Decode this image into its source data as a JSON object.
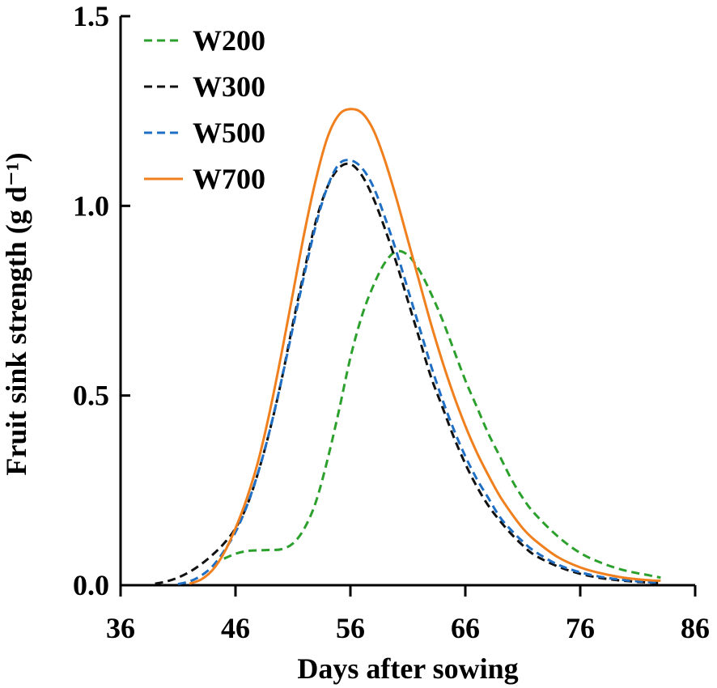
{
  "chart_data": {
    "type": "line",
    "title": "",
    "xlabel": "Days after sowing",
    "ylabel": "Fruit sink strength (g d⁻¹)",
    "xlim": [
      36,
      86
    ],
    "ylim": [
      0,
      1.5
    ],
    "xticks": [
      36,
      46,
      56,
      66,
      76,
      86
    ],
    "xtick_labels": [
      "36",
      "46",
      "56",
      "66",
      "76",
      "86"
    ],
    "yticks": [
      0,
      0.5,
      1.0,
      1.5
    ],
    "ytick_labels": [
      "0.0",
      "0.5",
      "1.0",
      "1.5"
    ],
    "grid": false,
    "legend_position": "top-left",
    "series": [
      {
        "name": "W200",
        "color": "#2ca02c",
        "dash": "dashed",
        "x": [
          45,
          46,
          47,
          48,
          49,
          50,
          51,
          52,
          53,
          54,
          55,
          56,
          57,
          58,
          59,
          60,
          61,
          62,
          63,
          64,
          65,
          66,
          67,
          68,
          69,
          70,
          71,
          72,
          74,
          76,
          78,
          80,
          82,
          83
        ],
        "y": [
          0.07,
          0.083,
          0.09,
          0.092,
          0.093,
          0.095,
          0.11,
          0.15,
          0.22,
          0.33,
          0.46,
          0.6,
          0.71,
          0.79,
          0.85,
          0.88,
          0.87,
          0.83,
          0.77,
          0.7,
          0.62,
          0.54,
          0.47,
          0.4,
          0.34,
          0.28,
          0.23,
          0.19,
          0.13,
          0.085,
          0.057,
          0.038,
          0.026,
          0.02
        ]
      },
      {
        "name": "W300",
        "color": "#111111",
        "dash": "dashed",
        "x": [
          39,
          40,
          41,
          42,
          43,
          44,
          45,
          46,
          47,
          48,
          49,
          50,
          51,
          52,
          53,
          54,
          55,
          56,
          57,
          58,
          59,
          60,
          61,
          62,
          63,
          64,
          65,
          66,
          67,
          68,
          69,
          70,
          71,
          72,
          74,
          76,
          78,
          80,
          82,
          83
        ],
        "y": [
          0.004,
          0.01,
          0.02,
          0.035,
          0.055,
          0.08,
          0.11,
          0.15,
          0.21,
          0.3,
          0.41,
          0.54,
          0.69,
          0.83,
          0.96,
          1.05,
          1.1,
          1.11,
          1.08,
          1.02,
          0.94,
          0.85,
          0.75,
          0.65,
          0.55,
          0.47,
          0.39,
          0.32,
          0.26,
          0.21,
          0.17,
          0.135,
          0.105,
          0.08,
          0.05,
          0.03,
          0.018,
          0.011,
          0.007,
          0.006
        ]
      },
      {
        "name": "W500",
        "color": "#1f6fc5",
        "dash": "dashed",
        "x": [
          41,
          42,
          43,
          44,
          45,
          46,
          47,
          48,
          49,
          50,
          51,
          52,
          53,
          54,
          55,
          56,
          57,
          58,
          59,
          60,
          61,
          62,
          63,
          64,
          65,
          66,
          67,
          68,
          69,
          70,
          71,
          72,
          74,
          76,
          78,
          80,
          82,
          83
        ],
        "y": [
          0.003,
          0.01,
          0.025,
          0.05,
          0.09,
          0.14,
          0.21,
          0.3,
          0.41,
          0.54,
          0.68,
          0.82,
          0.95,
          1.05,
          1.11,
          1.12,
          1.1,
          1.05,
          0.97,
          0.88,
          0.78,
          0.68,
          0.58,
          0.49,
          0.41,
          0.34,
          0.28,
          0.23,
          0.18,
          0.145,
          0.115,
          0.09,
          0.055,
          0.034,
          0.021,
          0.013,
          0.008,
          0.007
        ]
      },
      {
        "name": "W700",
        "color": "#f07f1e",
        "dash": "solid",
        "x": [
          42,
          43,
          44,
          45,
          46,
          47,
          48,
          49,
          50,
          51,
          52,
          53,
          54,
          55,
          56,
          57,
          58,
          59,
          60,
          61,
          62,
          63,
          64,
          65,
          66,
          67,
          68,
          69,
          70,
          71,
          72,
          74,
          76,
          78,
          80,
          82,
          83
        ],
        "y": [
          0.004,
          0.015,
          0.04,
          0.085,
          0.15,
          0.23,
          0.33,
          0.46,
          0.61,
          0.77,
          0.93,
          1.07,
          1.18,
          1.24,
          1.255,
          1.245,
          1.2,
          1.12,
          1.02,
          0.91,
          0.8,
          0.69,
          0.59,
          0.5,
          0.42,
          0.35,
          0.29,
          0.235,
          0.19,
          0.15,
          0.12,
          0.075,
          0.047,
          0.03,
          0.019,
          0.013,
          0.012
        ]
      }
    ]
  }
}
